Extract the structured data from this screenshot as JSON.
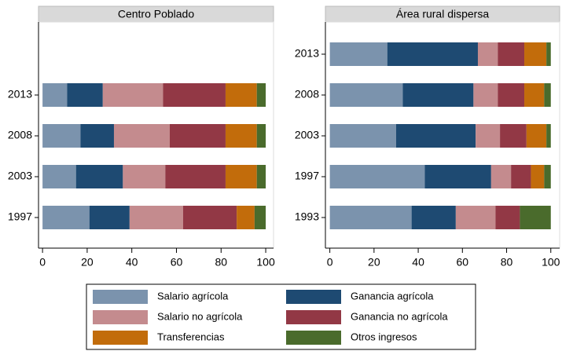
{
  "chart_data": [
    {
      "type": "stacked-bar-horizontal",
      "title": "Centro Poblado",
      "categories": [
        null,
        "2013",
        "2008",
        "2003",
        "1997"
      ],
      "xlim": [
        -1.8,
        103.5
      ],
      "xticks": [
        0,
        20,
        40,
        60,
        80,
        100
      ],
      "series": [
        {
          "name": "Salario agrícola",
          "color": "#7b93ad",
          "values": [
            null,
            11,
            17,
            15,
            21
          ]
        },
        {
          "name": "Ganancia agrícola",
          "color": "#1e4a72",
          "values": [
            null,
            16,
            15,
            21,
            18
          ]
        },
        {
          "name": "Salario no agrícola",
          "color": "#c48b8e",
          "values": [
            null,
            27,
            25,
            19,
            24
          ]
        },
        {
          "name": "Ganancia no agrícola",
          "color": "#923845",
          "values": [
            null,
            28,
            25,
            27,
            24
          ]
        },
        {
          "name": "Transferencias",
          "color": "#c26c0b",
          "values": [
            null,
            14,
            14,
            14,
            8
          ]
        },
        {
          "name": "Otros ingresos",
          "color": "#4a6b2c",
          "values": [
            null,
            4,
            4,
            4,
            5
          ]
        }
      ]
    },
    {
      "type": "stacked-bar-horizontal",
      "title": "Área rural dispersa",
      "categories": [
        "2013",
        "2008",
        "2003",
        "1997",
        "1993"
      ],
      "xlim": [
        -2,
        104
      ],
      "xticks": [
        0,
        20,
        40,
        60,
        80,
        100
      ],
      "series": [
        {
          "color": "#7b93ad",
          "values": [
            26,
            33,
            30,
            43,
            37
          ]
        },
        {
          "color": "#1e4a72",
          "values": [
            41,
            32,
            36,
            30,
            20
          ]
        },
        {
          "color": "#c48b8e",
          "values": [
            9,
            11,
            11,
            9,
            18
          ]
        },
        {
          "color": "#923845",
          "values": [
            12,
            12,
            12,
            9,
            11
          ]
        },
        {
          "color": "#c26c0b",
          "values": [
            10,
            9,
            9,
            6,
            0
          ]
        },
        {
          "color": "#4a6b2c",
          "values": [
            2,
            3,
            2,
            3,
            14
          ]
        }
      ]
    }
  ]
}
